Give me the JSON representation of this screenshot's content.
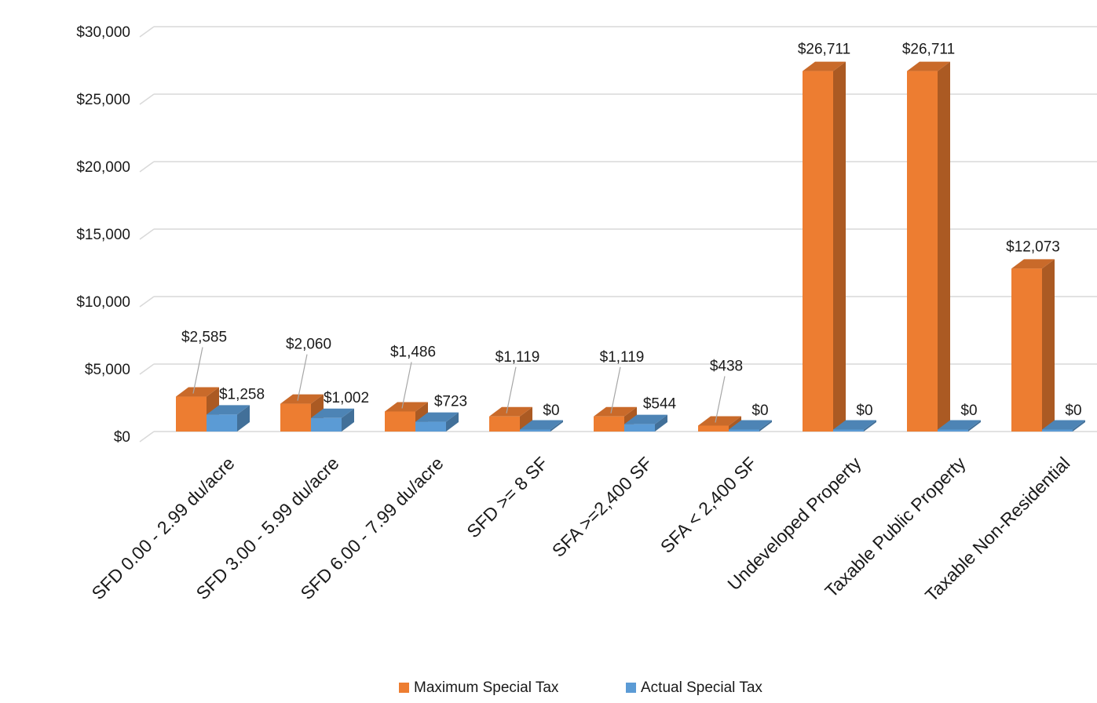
{
  "chart_data": {
    "type": "bar",
    "title": "",
    "xlabel": "",
    "ylabel": "",
    "ylim": [
      0,
      30000
    ],
    "y_ticks": [
      0,
      5000,
      10000,
      15000,
      20000,
      25000,
      30000
    ],
    "y_tick_labels": [
      "$0",
      "$5,000",
      "$10,000",
      "$15,000",
      "$20,000",
      "$25,000",
      "$30,000"
    ],
    "grid": true,
    "three_d": true,
    "legend_position": "bottom",
    "categories": [
      "SFD 0.00 - 2.99 du/acre",
      "SFD 3.00 - 5.99 du/acre",
      "SFD 6.00 - 7.99 du/acre",
      "SFD >= 8 SF",
      "SFA >=2,400 SF",
      "SFA < 2,400 SF",
      "Undeveloped Property",
      "Taxable Public Property",
      "Taxable Non-Residential"
    ],
    "series": [
      {
        "name": "Maximum Special Tax",
        "color": "#ED7D31",
        "values": [
          2585,
          2060,
          1486,
          1119,
          1119,
          438,
          26711,
          26711,
          12073
        ],
        "labels": [
          "$2,585",
          "$2,060",
          "$1,486",
          "$1,119",
          "$1,119",
          "$438",
          "$26,711",
          "$26,711",
          "$12,073"
        ]
      },
      {
        "name": "Actual Special Tax",
        "color": "#5B9BD5",
        "values": [
          1258,
          1002,
          723,
          0,
          544,
          0,
          0,
          0,
          0
        ],
        "labels": [
          "$1,258",
          "$1,002",
          "$723",
          "$0",
          "$544",
          "$0",
          "$0",
          "$0",
          "$0"
        ]
      }
    ]
  }
}
